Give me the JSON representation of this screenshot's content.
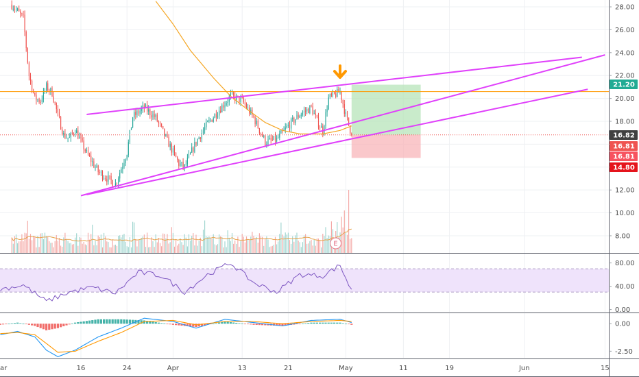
{
  "chart_data": [
    {
      "type": "candlestick",
      "x_tick_labels": [
        "ar",
        "16",
        "24",
        "Apr",
        "13",
        "21",
        "May",
        "11",
        "19",
        "Jun",
        "15"
      ],
      "y_tick_labels": [
        "8.00",
        "10.00",
        "12.00",
        "14.00",
        "16.00",
        "18.00",
        "20.00",
        "22.00",
        "24.00",
        "26.00",
        "28.00"
      ],
      "ylim": [
        6.5,
        28.6
      ],
      "price_tags": [
        {
          "label": "21.20",
          "value": 21.2,
          "color": "#22ab94"
        },
        {
          "label": "16.82",
          "value": 16.82,
          "color": "#404040"
        },
        {
          "label": "16.81",
          "value": 16.81,
          "color": "#ef5350"
        },
        {
          "label": "16.81",
          "value": 16.81,
          "color": "#f7525f"
        },
        {
          "label": "14.80",
          "value": 14.8,
          "color": "#e5141c"
        }
      ],
      "horizontal_line": {
        "value": 20.6,
        "color": "#ff9800"
      },
      "last_price_line": {
        "value": 16.82,
        "color": "#ef5350"
      },
      "trendlines": [
        {
          "x": [
            "Mar 16",
            "Jun 15"
          ],
          "y": [
            11.5,
            23.8
          ],
          "color": "#e040fb"
        },
        {
          "x": [
            "Mar 17",
            "Jun 11"
          ],
          "y": [
            18.6,
            23.6
          ],
          "color": "#e040fb"
        },
        {
          "x": [
            "Mar 17",
            "Jun 12"
          ],
          "y": [
            11.6,
            20.8
          ],
          "color": "#e040fb"
        }
      ],
      "position_tool": {
        "entry": 16.82,
        "target": 21.2,
        "stop": 14.8,
        "from": "May 2",
        "to": "May 14"
      },
      "arrow_marker": {
        "date": "Apr 30",
        "color": "#ff9800"
      },
      "event_marker": "E",
      "ohlc_anchors": [
        {
          "date": "Mar 4",
          "close": 28.2
        },
        {
          "date": "Mar 6",
          "close": 27.0
        },
        {
          "date": "Mar 7",
          "close": 22.0
        },
        {
          "date": "Mar 8",
          "close": 20.0
        },
        {
          "date": "Mar 9",
          "close": 19.8
        },
        {
          "date": "Mar 10",
          "close": 21.0
        },
        {
          "date": "Mar 11",
          "close": 20.5
        },
        {
          "date": "Mar 12",
          "close": 18.5
        },
        {
          "date": "Mar 13",
          "close": 16.8
        },
        {
          "date": "Mar 14",
          "close": 16.5
        },
        {
          "date": "Mar 15",
          "close": 17.3
        },
        {
          "date": "Mar 17",
          "close": 15.2
        },
        {
          "date": "Mar 19",
          "close": 13.6
        },
        {
          "date": "Mar 22",
          "close": 12.5
        },
        {
          "date": "Mar 24",
          "close": 15.3
        },
        {
          "date": "Mar 25",
          "close": 18.4
        },
        {
          "date": "Mar 27",
          "close": 19.2
        },
        {
          "date": "Mar 29",
          "close": 18.3
        },
        {
          "date": "Mar 31",
          "close": 16.3
        },
        {
          "date": "Apr 2",
          "close": 14.3
        },
        {
          "date": "Apr 3",
          "close": 14.0
        },
        {
          "date": "Apr 5",
          "close": 16.2
        },
        {
          "date": "Apr 7",
          "close": 17.8
        },
        {
          "date": "Apr 9",
          "close": 19.0
        },
        {
          "date": "Apr 11",
          "close": 20.2
        },
        {
          "date": "Apr 13",
          "close": 19.8
        },
        {
          "date": "Apr 15",
          "close": 18.3
        },
        {
          "date": "Apr 17",
          "close": 16.2
        },
        {
          "date": "Apr 19",
          "close": 16.4
        },
        {
          "date": "Apr 21",
          "close": 17.6
        },
        {
          "date": "Apr 23",
          "close": 18.6
        },
        {
          "date": "Apr 25",
          "close": 19.2
        },
        {
          "date": "Apr 26",
          "close": 18.0
        },
        {
          "date": "Apr 27",
          "close": 17.2
        },
        {
          "date": "Apr 28",
          "close": 20.0
        },
        {
          "date": "Apr 30",
          "close": 20.6
        },
        {
          "date": "May 1",
          "close": 18.5
        },
        {
          "date": "May 2",
          "close": 16.82
        }
      ],
      "sma": [
        {
          "date": "Mar 29",
          "value": 28.5
        },
        {
          "date": "Apr 1",
          "value": 26.5
        },
        {
          "date": "Apr 4",
          "value": 24.2
        },
        {
          "date": "Apr 8",
          "value": 21.8
        },
        {
          "date": "Apr 11",
          "value": 20.2
        },
        {
          "date": "Apr 14",
          "value": 19.0
        },
        {
          "date": "Apr 17",
          "value": 17.9
        },
        {
          "date": "Apr 20",
          "value": 17.2
        },
        {
          "date": "Apr 23",
          "value": 16.9
        },
        {
          "date": "Apr 27",
          "value": 16.9
        },
        {
          "date": "Apr 30",
          "value": 17.2
        },
        {
          "date": "May 2",
          "value": 17.6
        }
      ]
    },
    {
      "type": "volume",
      "note": "volume bars with moving average"
    },
    {
      "type": "line",
      "name": "RSI",
      "y_tick_labels": [
        "80.00",
        "40.00",
        "0.00"
      ],
      "ylim": [
        -4,
        96
      ],
      "band": [
        30,
        70
      ],
      "x": [
        "Mar 2",
        "Mar 6",
        "Mar 10",
        "Mar 14",
        "Mar 18",
        "Mar 22",
        "Mar 26",
        "Mar 30",
        "Apr 3",
        "Apr 7",
        "Apr 11",
        "Apr 15",
        "Apr 19",
        "Apr 23",
        "Apr 27",
        "Apr 30",
        "May 2"
      ],
      "values": [
        35,
        42,
        14,
        30,
        38,
        28,
        64,
        58,
        30,
        60,
        80,
        46,
        30,
        60,
        58,
        76,
        32
      ]
    },
    {
      "type": "line",
      "name": "MACD",
      "y_tick_labels": [
        "0.00",
        "-2.50"
      ],
      "ylim": [
        -3.1,
        0.95
      ],
      "x": [
        "Mar 2",
        "Mar 5",
        "Mar 8",
        "Mar 10",
        "Mar 12",
        "Mar 15",
        "Mar 19",
        "Mar 23",
        "Mar 27",
        "Apr 1",
        "Apr 5",
        "Apr 10",
        "Apr 15",
        "Apr 20",
        "Apr 25",
        "Apr 30",
        "May 2"
      ],
      "macd": [
        -1.0,
        -0.7,
        -1.2,
        -2.4,
        -3.0,
        -2.4,
        -1.2,
        -0.4,
        0.5,
        0.2,
        -0.4,
        0.4,
        0.1,
        -0.2,
        0.3,
        0.4,
        0.1
      ],
      "signal": [
        -0.9,
        -0.8,
        -1.0,
        -1.8,
        -2.6,
        -2.5,
        -1.6,
        -0.8,
        0.2,
        0.3,
        -0.1,
        0.2,
        0.2,
        0.0,
        0.2,
        0.3,
        0.2
      ]
    }
  ]
}
